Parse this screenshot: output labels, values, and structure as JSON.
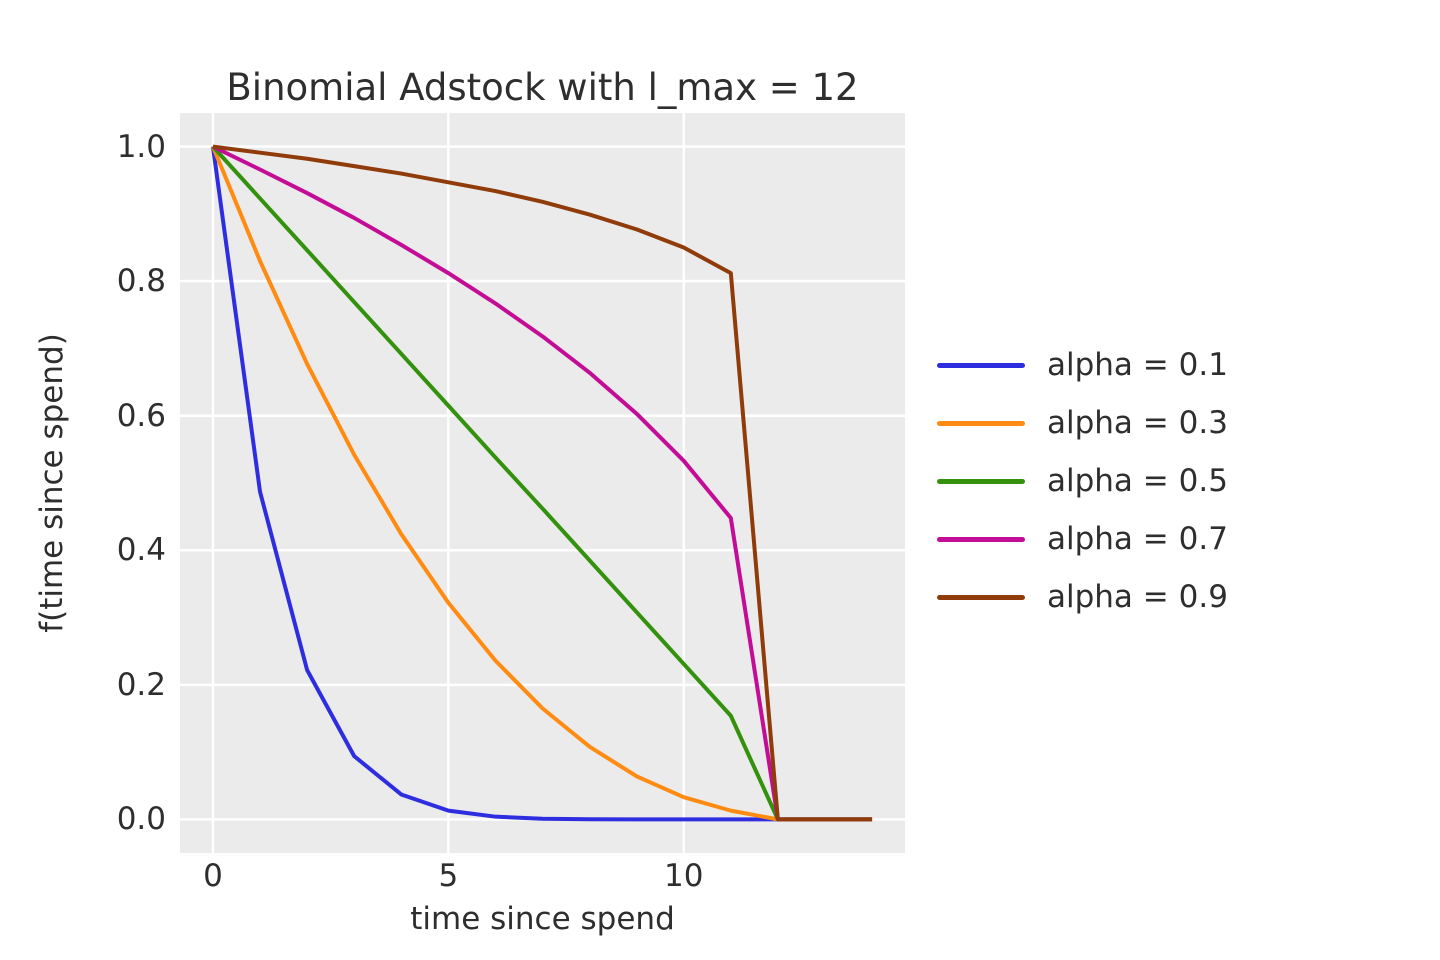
{
  "figure": {
    "background": "#ffffff",
    "text_color": "#2e2e2e"
  },
  "chart_data": {
    "type": "line",
    "title": "Binomial Adstock with l_max = 12",
    "xlabel": "time since spend",
    "ylabel": "f(time since spend)",
    "plot_bg": "#ebebeb",
    "grid_color": "#ffffff",
    "grid": true,
    "line_width": 4,
    "legend_position": "right-outside",
    "xlim": [
      -0.7,
      14.7
    ],
    "ylim": [
      -0.05,
      1.05
    ],
    "xticks": [
      0,
      5,
      10
    ],
    "xtick_labels": [
      "0",
      "5",
      "10"
    ],
    "yticks": [
      0.0,
      0.2,
      0.4,
      0.6,
      0.8,
      1.0
    ],
    "ytick_labels": [
      "0.0",
      "0.2",
      "0.4",
      "0.6",
      "0.8",
      "1.0"
    ],
    "x": [
      0,
      1,
      2,
      3,
      4,
      5,
      6,
      7,
      8,
      9,
      10,
      11,
      12,
      13,
      14
    ],
    "series": [
      {
        "name": "alpha = 0.1",
        "color": "#2e2ee0",
        "values": [
          1.0,
          0.487,
          0.222,
          0.094,
          0.037,
          0.013,
          0.004,
          0.001,
          0.0002,
          0.0,
          0.0,
          0.0,
          0.0,
          0.0,
          0.0
        ]
      },
      {
        "name": "alpha = 0.3",
        "color": "#ff8b12",
        "values": [
          1.0,
          0.83,
          0.677,
          0.542,
          0.424,
          0.322,
          0.236,
          0.165,
          0.108,
          0.064,
          0.033,
          0.013,
          0.0,
          0.0,
          0.0
        ]
      },
      {
        "name": "alpha = 0.5",
        "color": "#33910d",
        "values": [
          1.0,
          0.923,
          0.846,
          0.769,
          0.692,
          0.615,
          0.538,
          0.462,
          0.385,
          0.308,
          0.231,
          0.154,
          0.0,
          0.0,
          0.0
        ]
      },
      {
        "name": "alpha = 0.7",
        "color": "#c40d96",
        "values": [
          1.0,
          0.966,
          0.931,
          0.894,
          0.854,
          0.812,
          0.767,
          0.718,
          0.664,
          0.603,
          0.533,
          0.448,
          0.0,
          0.0,
          0.0
        ]
      },
      {
        "name": "alpha = 0.9",
        "color": "#8f3c0a",
        "values": [
          1.0,
          0.991,
          0.982,
          0.971,
          0.96,
          0.947,
          0.934,
          0.918,
          0.899,
          0.877,
          0.85,
          0.812,
          0.0,
          0.0,
          0.0
        ]
      }
    ]
  }
}
